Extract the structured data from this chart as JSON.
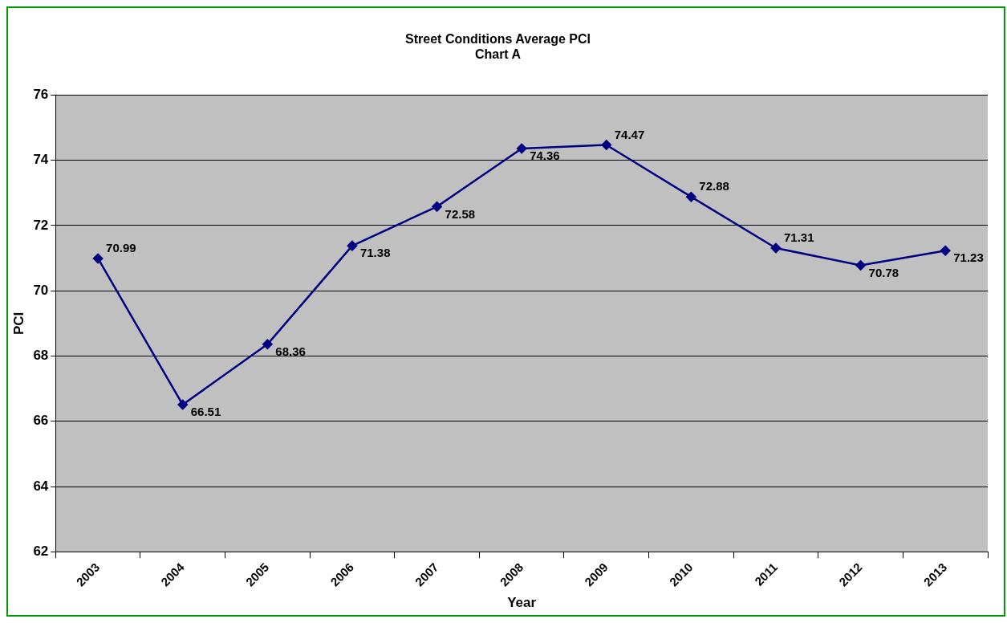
{
  "chart_data": {
    "type": "line",
    "title": "Street Conditions Average PCI",
    "subtitle": "Chart A",
    "xlabel": "Year",
    "ylabel": "PCI",
    "categories": [
      "2003",
      "2004",
      "2005",
      "2006",
      "2007",
      "2008",
      "2009",
      "2010",
      "2011",
      "2012",
      "2013"
    ],
    "series": [
      {
        "color": "#000080",
        "values": [
          70.99,
          66.51,
          68.36,
          71.38,
          72.58,
          74.36,
          74.47,
          72.88,
          71.31,
          70.78,
          71.23
        ]
      }
    ],
    "ylim": [
      62,
      76
    ],
    "yticks": [
      62,
      64,
      66,
      68,
      70,
      72,
      74,
      76
    ],
    "grid": "y",
    "legend": false,
    "marker": "diamond",
    "line_style": "solid",
    "data_labels": true
  }
}
